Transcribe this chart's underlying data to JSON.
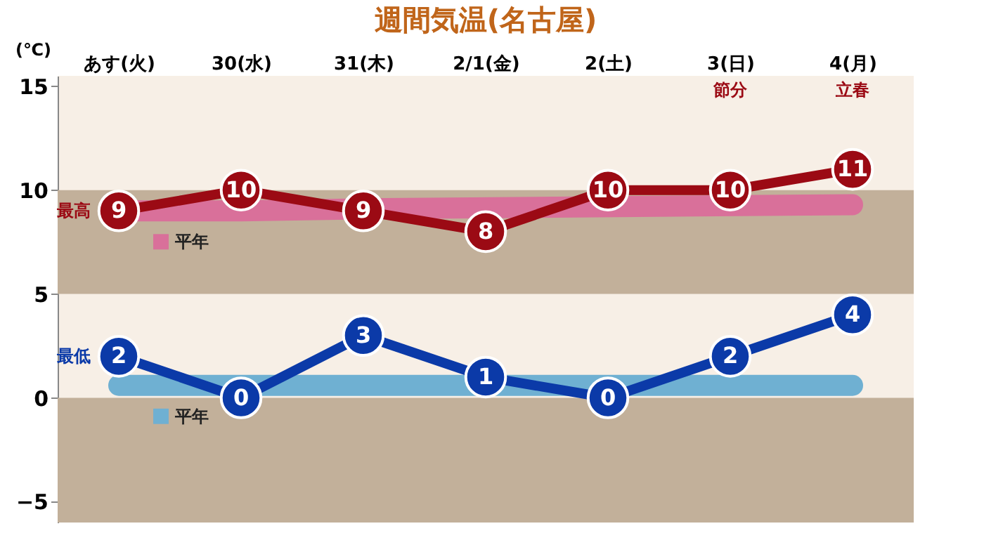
{
  "chart_data": {
    "type": "line",
    "title": "週間気温(名古屋)",
    "ylabel": "(℃)",
    "categories": [
      "あす(火)",
      "30(水)",
      "31(木)",
      "2/1(金)",
      "2(土)",
      "3(日)",
      "4(月)"
    ],
    "series": [
      {
        "name": "平年",
        "color": "#d9709a",
        "values": [
          9.0,
          9.0,
          9.1,
          null,
          null,
          null,
          9.3
        ],
        "marker": "none"
      },
      {
        "name": "平年",
        "color": "#6fb0d2",
        "values": [
          0.6,
          0.6,
          0.6,
          null,
          0.6,
          0.6,
          0.6
        ],
        "marker": "none"
      },
      {
        "name": "最高",
        "color": "#9b0a14",
        "values": [
          9,
          10,
          9,
          8,
          10,
          10,
          11
        ],
        "value_labels": [
          "9",
          "10",
          "9",
          "8",
          "10",
          "10",
          "11"
        ],
        "marker": "circle"
      },
      {
        "name": "最低",
        "color": "#0b3aa8",
        "values": [
          2,
          0,
          3,
          1,
          0,
          2,
          4
        ],
        "value_labels": [
          "2",
          "0",
          "3",
          "1",
          "0",
          "2",
          "4"
        ],
        "marker": "circle"
      }
    ],
    "grid": false,
    "ylim": [
      -6,
      15.5
    ],
    "yticks": [
      -5,
      0,
      5,
      10,
      15
    ],
    "bands": [
      {
        "axis": "y",
        "from": 5,
        "to": 10,
        "color": "#c2b09a"
      },
      {
        "axis": "y",
        "from": -6,
        "to": 0,
        "color": "#c2b09a"
      }
    ],
    "annotations": [
      "節分",
      "立春"
    ]
  }
}
